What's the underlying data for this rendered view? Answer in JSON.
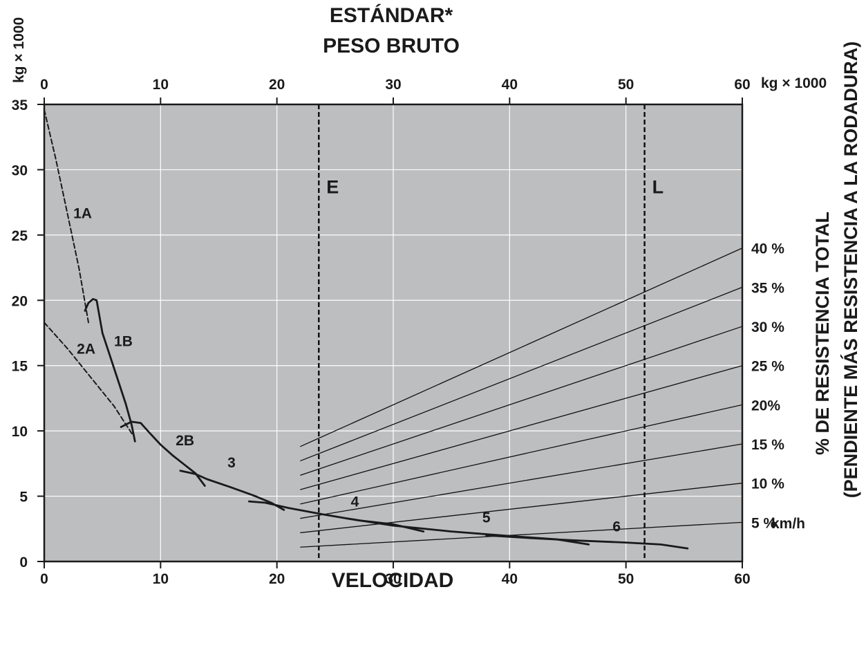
{
  "chart_data": {
    "type": "line",
    "title_lines": [
      "ESTÁNDAR*",
      "PESO BRUTO"
    ],
    "top_axis": {
      "ticks": [
        "0",
        "10",
        "20",
        "30",
        "40",
        "50",
        "60"
      ],
      "unit": "kg × 1000",
      "range": [
        0,
        60
      ]
    },
    "left_axis": {
      "ticks": [
        "0",
        "5",
        "10",
        "15",
        "20",
        "25",
        "30",
        "35"
      ],
      "unit": "kg × 1000",
      "range": [
        0,
        35
      ]
    },
    "bottom_axis": {
      "ticks": [
        "0",
        "10",
        "20",
        "30",
        "40",
        "50",
        "60"
      ],
      "unit": "km/h",
      "label": "VELOCIDAD",
      "range": [
        0,
        60
      ]
    },
    "right_axis": {
      "label_line1": "% DE RESISTENCIA TOTAL",
      "label_line2": "(PENDIENTE MÁS RESISTENCIA A LA RODADURA)"
    },
    "grid": true,
    "plot_background": "#bdbec0",
    "grid_color": "#ffffff",
    "curve_color": "#1a1a1a",
    "vertical_markers": [
      {
        "label": "E",
        "x": 23.6
      },
      {
        "label": "L",
        "x": 51.6
      }
    ],
    "curves": [
      {
        "name": "1A",
        "style": "dashed",
        "label_at": [
          3.3,
          26.3
        ],
        "points": [
          [
            0,
            34.6
          ],
          [
            1,
            30.8
          ],
          [
            2,
            26.6
          ],
          [
            3,
            22.4
          ],
          [
            3.8,
            18.3
          ]
        ]
      },
      {
        "name": "1B",
        "style": "solid",
        "label_at": [
          6.8,
          16.5
        ],
        "points": [
          [
            3.5,
            19.2
          ],
          [
            3.8,
            19.8
          ],
          [
            4.2,
            20.1
          ],
          [
            4.5,
            20.0
          ],
          [
            5,
            17.5
          ],
          [
            6,
            14.8
          ],
          [
            7,
            12.1
          ],
          [
            7.5,
            10.5
          ],
          [
            7.8,
            9.2
          ]
        ]
      },
      {
        "name": "2A",
        "style": "dashed",
        "label_at": [
          3.6,
          15.9
        ],
        "points": [
          [
            0,
            18.3
          ],
          [
            2,
            16.3
          ],
          [
            4,
            14.1
          ],
          [
            6,
            11.9
          ],
          [
            7.6,
            9.7
          ]
        ]
      },
      {
        "name": "2B",
        "style": "solid",
        "label_at": [
          12.1,
          8.9
        ],
        "points": [
          [
            6.6,
            10.3
          ],
          [
            7.5,
            10.7
          ],
          [
            8.3,
            10.6
          ],
          [
            9,
            9.9
          ],
          [
            10,
            8.95
          ],
          [
            11,
            8.15
          ],
          [
            12,
            7.45
          ],
          [
            13,
            6.75
          ],
          [
            13.8,
            5.8
          ]
        ]
      },
      {
        "name": "3",
        "style": "solid",
        "label_at": [
          16.1,
          7.2
        ],
        "points": [
          [
            11.7,
            6.95
          ],
          [
            13,
            6.7
          ],
          [
            14,
            6.3
          ],
          [
            16,
            5.7
          ],
          [
            18,
            5.05
          ],
          [
            19.5,
            4.5
          ],
          [
            20.6,
            3.95
          ]
        ]
      },
      {
        "name": "4",
        "style": "solid",
        "label_at": [
          26.7,
          4.2
        ],
        "points": [
          [
            17.6,
            4.6
          ],
          [
            19,
            4.5
          ],
          [
            21,
            4.1
          ],
          [
            24,
            3.6
          ],
          [
            27,
            3.15
          ],
          [
            30,
            2.85
          ],
          [
            32.6,
            2.3
          ]
        ]
      },
      {
        "name": "5",
        "style": "solid",
        "label_at": [
          38,
          3.0
        ],
        "points": [
          [
            26,
            3.3
          ],
          [
            30,
            2.75
          ],
          [
            35,
            2.3
          ],
          [
            40,
            1.95
          ],
          [
            44,
            1.7
          ],
          [
            46.8,
            1.3
          ]
        ]
      },
      {
        "name": "6",
        "style": "solid",
        "label_at": [
          49.2,
          2.3
        ],
        "points": [
          [
            38,
            2.0
          ],
          [
            42,
            1.78
          ],
          [
            46,
            1.6
          ],
          [
            50,
            1.45
          ],
          [
            53,
            1.3
          ],
          [
            55.3,
            1.0
          ]
        ]
      }
    ],
    "resistance_lines": [
      {
        "label": "40 %",
        "points": [
          [
            22,
            8.8
          ],
          [
            60,
            24.0
          ]
        ]
      },
      {
        "label": "35 %",
        "points": [
          [
            22,
            7.7
          ],
          [
            60,
            21.0
          ]
        ]
      },
      {
        "label": "30 %",
        "points": [
          [
            22,
            6.6
          ],
          [
            60,
            18.0
          ]
        ]
      },
      {
        "label": "25 %",
        "points": [
          [
            22,
            5.5
          ],
          [
            60,
            15.0
          ]
        ]
      },
      {
        "label": "20%",
        "points": [
          [
            22,
            4.4
          ],
          [
            60,
            12.0
          ]
        ]
      },
      {
        "label": "15 %",
        "points": [
          [
            22,
            3.3
          ],
          [
            60,
            9.0
          ]
        ]
      },
      {
        "label": "10 %",
        "points": [
          [
            22,
            2.2
          ],
          [
            60,
            6.0
          ]
        ]
      },
      {
        "label": "5 %",
        "points": [
          [
            22,
            1.1
          ],
          [
            60,
            3.0
          ]
        ]
      }
    ]
  }
}
